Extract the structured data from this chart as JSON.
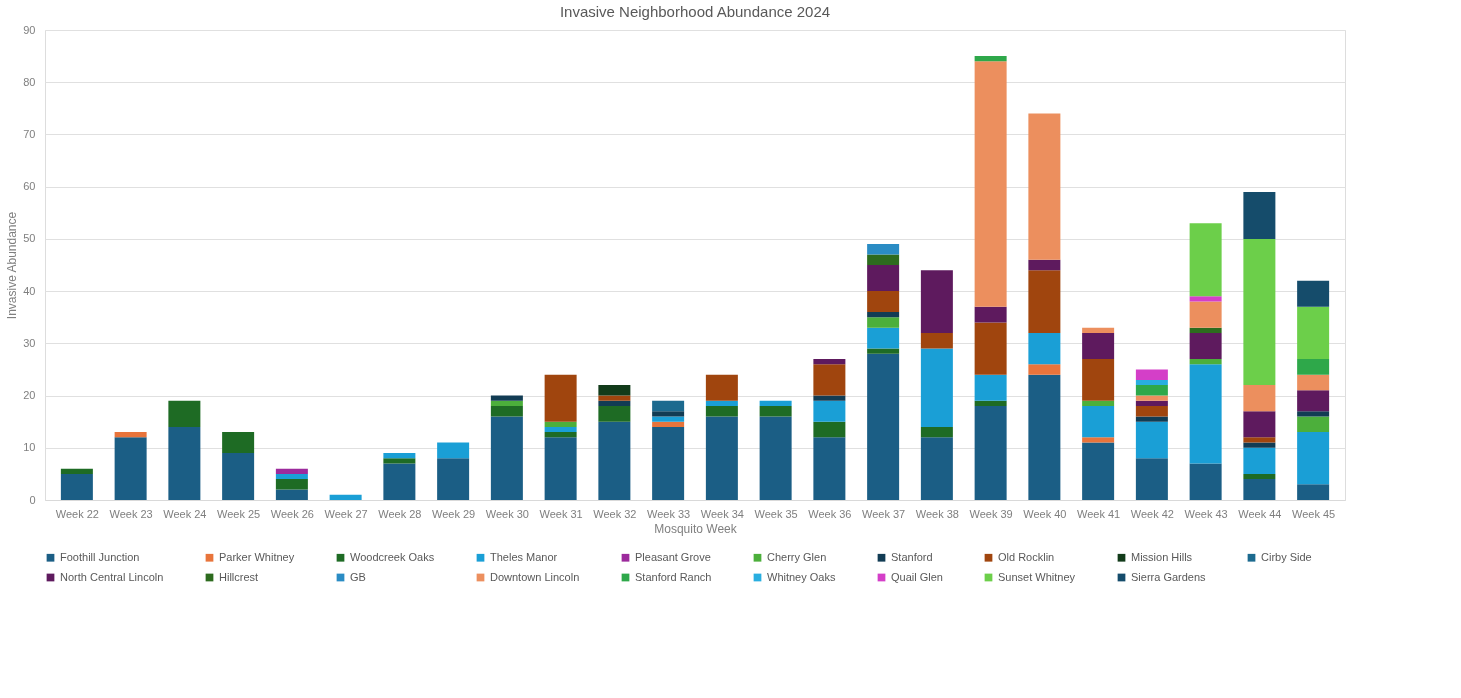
{
  "chart_data": {
    "type": "bar",
    "stacked": true,
    "title": "Invasive Neighborhood Abundance 2024",
    "xlabel": "Mosquito Week",
    "ylabel": "Invasive Abundance",
    "categories": [
      "Week 22",
      "Week 23",
      "Week 24",
      "Week 25",
      "Week 26",
      "Week 27",
      "Week 28",
      "Week 29",
      "Week 30",
      "Week 31",
      "Week 32",
      "Week 33",
      "Week 34",
      "Week 35",
      "Week 36",
      "Week 37",
      "Week 38",
      "Week 39",
      "Week 40",
      "Week 41",
      "Week 42",
      "Week 43",
      "Week 44",
      "Week 45"
    ],
    "ylim": [
      0,
      90
    ],
    "yticks": [
      0,
      10,
      20,
      30,
      40,
      50,
      60,
      70,
      80,
      90
    ],
    "grid": "y",
    "legend": "bottom",
    "series": [
      {
        "name": "Foothill Junction",
        "color": "#1b5e85",
        "values": [
          5,
          12,
          14,
          9,
          2,
          null,
          7,
          8,
          16,
          12,
          15,
          14,
          16,
          16,
          12,
          28,
          12,
          18,
          24,
          11,
          8,
          7,
          4,
          3
        ]
      },
      {
        "name": "Parker Whitney",
        "color": "#e8743b",
        "values": [
          null,
          1,
          null,
          null,
          null,
          null,
          null,
          null,
          null,
          null,
          null,
          1,
          null,
          null,
          null,
          null,
          null,
          null,
          2,
          1,
          null,
          null,
          null,
          null
        ]
      },
      {
        "name": "Woodcreek Oaks",
        "color": "#1e6b24",
        "values": [
          1,
          null,
          5,
          4,
          2,
          null,
          1,
          null,
          2,
          1,
          3,
          null,
          2,
          2,
          3,
          1,
          2,
          1,
          null,
          null,
          null,
          null,
          1,
          null
        ]
      },
      {
        "name": "Theles Manor",
        "color": "#1a9fd6",
        "values": [
          null,
          null,
          null,
          null,
          1,
          1,
          1,
          3,
          null,
          1,
          null,
          1,
          1,
          1,
          4,
          4,
          15,
          5,
          6,
          6,
          7,
          19,
          5,
          10
        ]
      },
      {
        "name": "Pleasant Grove",
        "color": "#9c2a9c",
        "values": [
          null,
          null,
          null,
          null,
          1,
          null,
          null,
          null,
          null,
          null,
          null,
          null,
          null,
          null,
          null,
          null,
          null,
          null,
          null,
          null,
          null,
          null,
          null,
          null
        ]
      },
      {
        "name": "Cherry Glen",
        "color": "#4caf3b",
        "values": [
          null,
          null,
          null,
          null,
          null,
          null,
          null,
          null,
          1,
          1,
          null,
          null,
          null,
          null,
          null,
          2,
          null,
          null,
          null,
          1,
          null,
          1,
          null,
          3
        ]
      },
      {
        "name": "Stanford",
        "color": "#123c54",
        "values": [
          null,
          null,
          null,
          null,
          null,
          null,
          null,
          null,
          1,
          null,
          1,
          1,
          null,
          null,
          1,
          1,
          null,
          null,
          null,
          null,
          1,
          null,
          1,
          1
        ]
      },
      {
        "name": "Old Rocklin",
        "color": "#a0450e",
        "values": [
          null,
          null,
          null,
          null,
          null,
          null,
          null,
          null,
          null,
          9,
          1,
          null,
          5,
          null,
          6,
          4,
          3,
          10,
          12,
          8,
          2,
          null,
          1,
          null
        ]
      },
      {
        "name": "Mission Hills",
        "color": "#123b1a",
        "values": [
          null,
          null,
          null,
          null,
          null,
          null,
          null,
          null,
          null,
          null,
          2,
          null,
          null,
          null,
          null,
          null,
          null,
          null,
          null,
          null,
          null,
          null,
          null,
          null
        ]
      },
      {
        "name": "Cirby Side",
        "color": "#1c6a8f",
        "values": [
          null,
          null,
          null,
          null,
          null,
          null,
          null,
          null,
          null,
          null,
          null,
          2,
          null,
          null,
          null,
          null,
          null,
          null,
          null,
          null,
          null,
          null,
          null,
          null
        ]
      },
      {
        "name": "North Central Lincoln",
        "color": "#5e1a5e",
        "values": [
          null,
          null,
          null,
          null,
          null,
          null,
          null,
          null,
          null,
          null,
          null,
          null,
          null,
          null,
          1,
          5,
          12,
          3,
          2,
          5,
          1,
          5,
          5,
          4
        ]
      },
      {
        "name": "Hillcrest",
        "color": "#2d6b1e",
        "values": [
          null,
          null,
          null,
          null,
          null,
          null,
          null,
          null,
          null,
          null,
          null,
          null,
          null,
          null,
          null,
          2,
          null,
          null,
          null,
          null,
          null,
          1,
          null,
          null
        ]
      },
      {
        "name": "GB",
        "color": "#2a8cc4",
        "values": [
          null,
          null,
          null,
          null,
          null,
          null,
          null,
          null,
          null,
          null,
          null,
          null,
          null,
          null,
          null,
          2,
          null,
          null,
          null,
          null,
          null,
          null,
          null,
          null
        ]
      },
      {
        "name": "Downtown Lincoln",
        "color": "#ec8f5e",
        "values": [
          null,
          null,
          null,
          null,
          null,
          null,
          null,
          null,
          null,
          null,
          null,
          null,
          null,
          null,
          null,
          null,
          null,
          47,
          28,
          1,
          1,
          5,
          5,
          3
        ]
      },
      {
        "name": "Stanford Ranch",
        "color": "#2ea84a",
        "values": [
          null,
          null,
          null,
          null,
          null,
          null,
          null,
          null,
          null,
          null,
          null,
          null,
          null,
          null,
          null,
          null,
          null,
          1,
          null,
          null,
          2,
          null,
          null,
          3
        ]
      },
      {
        "name": "Whitney Oaks",
        "color": "#29aee0",
        "values": [
          null,
          null,
          null,
          null,
          null,
          null,
          null,
          null,
          null,
          null,
          null,
          null,
          null,
          null,
          null,
          null,
          null,
          null,
          null,
          null,
          1,
          null,
          null,
          null
        ]
      },
      {
        "name": "Quail Glen",
        "color": "#d43fc8",
        "values": [
          null,
          null,
          null,
          null,
          null,
          null,
          null,
          null,
          null,
          null,
          null,
          null,
          null,
          null,
          null,
          null,
          null,
          null,
          null,
          null,
          2,
          1,
          null,
          null
        ]
      },
      {
        "name": "Sunset Whitney",
        "color": "#6ccf4a",
        "values": [
          null,
          null,
          null,
          null,
          null,
          null,
          null,
          null,
          null,
          null,
          null,
          null,
          null,
          null,
          null,
          null,
          null,
          null,
          null,
          null,
          null,
          14,
          28,
          10
        ]
      },
      {
        "name": "Sierra Gardens",
        "color": "#154c6b",
        "values": [
          null,
          null,
          null,
          null,
          null,
          null,
          null,
          null,
          null,
          null,
          null,
          null,
          null,
          null,
          null,
          null,
          null,
          null,
          null,
          null,
          null,
          null,
          9,
          5
        ]
      }
    ]
  }
}
